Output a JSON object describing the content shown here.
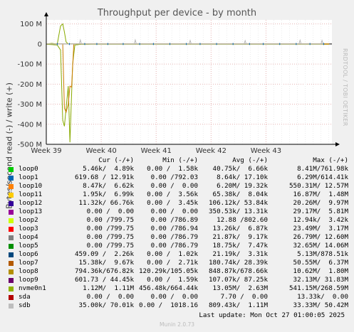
{
  "chart_data": {
    "type": "line",
    "title": "Throughput per device - by month",
    "ylabel": "Bytes/second read (-) / write (+)",
    "ylim": [
      -500000000,
      120000000
    ],
    "yticks": [
      {
        "value": 100000000,
        "label": "100 M"
      },
      {
        "value": 0,
        "label": "0"
      },
      {
        "value": -100000000,
        "label": "-100 M"
      },
      {
        "value": -200000000,
        "label": "-200 M"
      },
      {
        "value": -300000000,
        "label": "-300 M"
      },
      {
        "value": -400000000,
        "label": "-400 M"
      },
      {
        "value": -500000000,
        "label": "-500 M"
      }
    ],
    "xticks": [
      "Week 39",
      "Week 40",
      "Week 41",
      "Week 42",
      "Week 43"
    ],
    "xlim": [
      0,
      5.2
    ],
    "grid": true,
    "series": [
      {
        "name": "nvme0n1",
        "color": "#88aa00",
        "x": [
          0.0,
          0.1,
          0.2,
          0.26,
          0.3,
          0.33,
          0.36,
          0.4,
          0.43,
          0.48,
          0.52,
          0.58,
          0.64,
          0.75,
          0.85,
          1.0,
          1.2,
          1.5,
          2.0,
          2.5,
          3.0,
          3.5,
          4.0,
          4.5,
          5.0,
          5.15
        ],
        "write": [
          0,
          3000000,
          0,
          90000000,
          100000000,
          60000000,
          10000000,
          0,
          0,
          0,
          0,
          0,
          0,
          0,
          0,
          0,
          0,
          0,
          0,
          0,
          0,
          0,
          0,
          0,
          0,
          0
        ],
        "read": [
          -2000000,
          -3000000,
          -5000000,
          -30000000,
          -380000000,
          -410000000,
          -320000000,
          -210000000,
          -490000000,
          -100000000,
          -5000000,
          -3000000,
          -1000000,
          -2000000,
          -1000000,
          -1000000,
          -1000000,
          -1000000,
          -1000000,
          -1000000,
          -1000000,
          -1000000,
          -1000000,
          -1000000,
          -1000000,
          -1000000
        ]
      },
      {
        "name": "loop8",
        "color": "#cc7a00",
        "x": [
          0.0,
          0.3,
          0.33,
          0.36,
          0.4,
          0.43,
          0.46,
          0.5,
          0.55,
          1.0,
          2.0,
          3.0,
          4.0,
          5.15
        ],
        "write": [
          0,
          0,
          0,
          0,
          0,
          0,
          0,
          0,
          0,
          0,
          0,
          0,
          0,
          0
        ],
        "read": [
          0,
          0,
          -320000000,
          -340000000,
          -300000000,
          -210000000,
          -215000000,
          -1000000,
          0,
          0,
          0,
          0,
          0,
          0
        ]
      },
      {
        "name": "sdb",
        "color": "#b8b8b8",
        "x": [
          0.0,
          0.6,
          0.62,
          0.64,
          1.6,
          1.62,
          1.64,
          2.6,
          2.62,
          2.64,
          3.6,
          3.62,
          3.64,
          4.6,
          4.62,
          4.64,
          5.0,
          5.02,
          5.04
        ],
        "write": [
          0,
          0,
          20000000,
          0,
          0,
          20000000,
          0,
          0,
          18000000,
          0,
          0,
          17000000,
          0,
          0,
          19000000,
          0,
          0,
          18000000,
          0
        ],
        "read": [
          0,
          0,
          0,
          0,
          0,
          0,
          0,
          0,
          0,
          0,
          0,
          0,
          0,
          0,
          0,
          0,
          0,
          0,
          0
        ]
      },
      {
        "name": "loop1",
        "color": "#0066b3",
        "spikes": [
          0.2,
          0.42,
          0.7,
          0.92,
          1.12,
          1.4,
          1.7,
          1.95,
          2.25,
          2.55,
          2.8,
          3.1,
          3.4,
          3.7,
          3.95,
          4.25,
          4.55,
          4.8,
          5.05
        ],
        "amplitude": 5000000
      }
    ]
  },
  "legend": {
    "headers": [
      "Cur (-/+)",
      "Min (-/+)",
      "Avg (-/+)",
      "Max (-/+)"
    ],
    "rows": [
      {
        "name": "loop0",
        "color": "#00cc00",
        "cur": "5.46k/  4.89k",
        "min": "0.00 /  1.58k",
        "avg": "40.75k/  6.66k",
        "max": "8.41M/761.98k"
      },
      {
        "name": "loop1",
        "color": "#0066b3",
        "cur": "619.68 / 12.91k",
        "min": "0.00 /792.03",
        "avg": "8.64k/ 17.10k",
        "max": "6.29M/614.41k"
      },
      {
        "name": "loop10",
        "color": "#ff8000",
        "cur": "8.47k/  6.62k",
        "min": "0.00 /  0.00",
        "avg": "6.20M/ 19.32k",
        "max": "550.31M/ 12.57M"
      },
      {
        "name": "loop11",
        "color": "#ffcc00",
        "cur": "1.95k/  6.99k",
        "min": "0.00 /  3.56k",
        "avg": "65.38k/  8.04k",
        "max": "16.87M/  1.48M"
      },
      {
        "name": "loop12",
        "color": "#330099",
        "cur": "11.32k/ 66.76k",
        "min": "0.00 /  3.45k",
        "avg": "106.12k/ 53.84k",
        "max": "20.26M/  9.97M"
      },
      {
        "name": "loop13",
        "color": "#990099",
        "cur": "0.00 /  0.00",
        "min": "0.00 /  0.00",
        "avg": "350.53k/ 13.31k",
        "max": "29.17M/  5.81M"
      },
      {
        "name": "loop2",
        "color": "#ccff00",
        "cur": "0.00 /799.75",
        "min": "0.00 /786.89",
        "avg": "12.88 /802.60",
        "max": "12.94k/  3.42k"
      },
      {
        "name": "loop3",
        "color": "#ff0000",
        "cur": "0.00 /799.75",
        "min": "0.00 /786.94",
        "avg": "13.26k/  6.87k",
        "max": "23.49M/  3.17M"
      },
      {
        "name": "loop4",
        "color": "#808080",
        "cur": "0.00 /799.75",
        "min": "0.00 /786.79",
        "avg": "21.87k/  9.17k",
        "max": "26.79M/ 12.60M"
      },
      {
        "name": "loop5",
        "color": "#008f00",
        "cur": "0.00 /799.75",
        "min": "0.00 /786.79",
        "avg": "18.75k/  7.47k",
        "max": "32.65M/ 14.06M"
      },
      {
        "name": "loop6",
        "color": "#00487d",
        "cur": "459.09 /  2.26k",
        "min": "0.00 /  1.02k",
        "avg": "21.19k/  3.31k",
        "max": "5.13M/878.51k"
      },
      {
        "name": "loop7",
        "color": "#b35a00",
        "cur": "15.38k/  9.67k",
        "min": "0.00 /  2.71k",
        "avg": "180.74k/ 28.39k",
        "max": "50.55M/  6.37M"
      },
      {
        "name": "loop8",
        "color": "#b38f00",
        "cur": "794.36k/676.82k",
        "min": "120.29k/105.05k",
        "avg": "848.87k/678.66k",
        "max": "10.62M/  1.80M"
      },
      {
        "name": "loop9",
        "color": "#6b006b",
        "cur": "601.73 / 44.45k",
        "min": "0.00 /  1.59k",
        "avg": "107.07k/ 87.25k",
        "max": "32.13M/ 31.83M"
      },
      {
        "name": "nvme0n1",
        "color": "#8fb300",
        "cur": "1.12M/  1.11M",
        "min": "456.48k/664.44k",
        "avg": "13.05M/  2.63M",
        "max": "541.15M/268.59M"
      },
      {
        "name": "sda",
        "color": "#b30000",
        "cur": "0.00 /  0.00",
        "min": "0.00 /  0.00",
        "avg": "7.70 /  0.00",
        "max": "13.33k/  0.00"
      },
      {
        "name": "sdb",
        "color": "#bebebe",
        "cur": "35.00k/ 70.01k",
        "min": "0.00 /  1018.16",
        "avg": "809.43k/  1.11M",
        "max": "33.33M/ 50.42M"
      }
    ]
  },
  "last_update": "Last update: Mon Oct 27 01:00:05 2025",
  "side_label": "RRDTOOL / TOBI OETIKER",
  "footer": "Munin 2.0.73"
}
